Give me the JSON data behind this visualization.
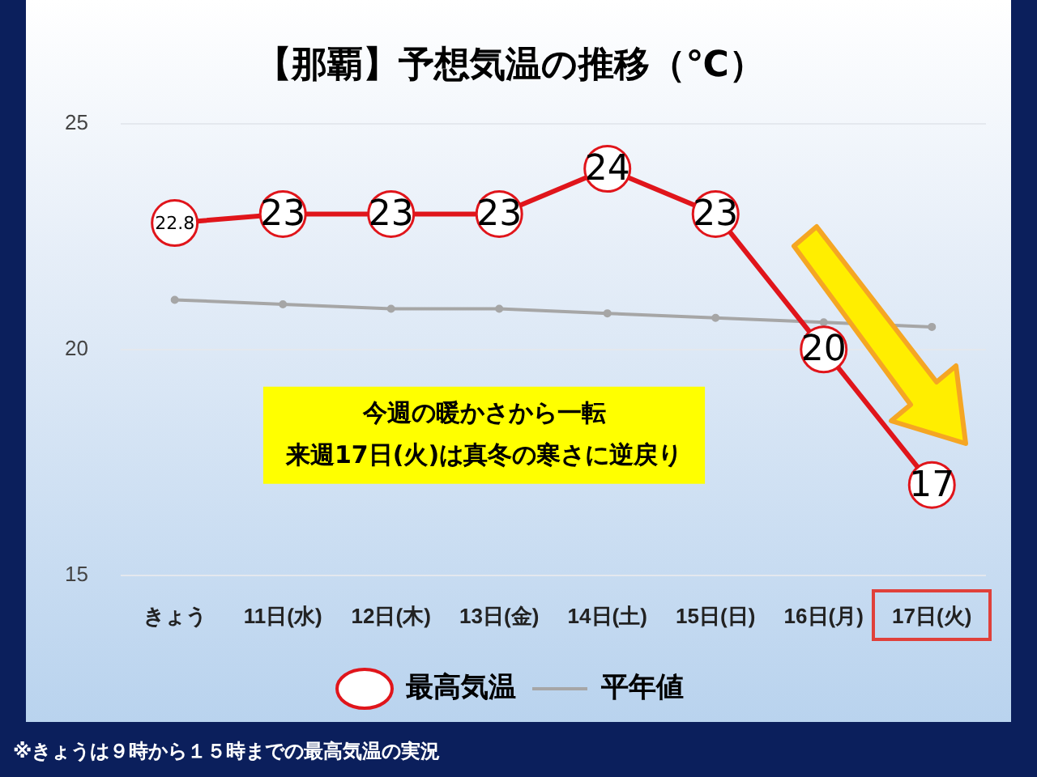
{
  "chart_data": {
    "type": "line",
    "title": "【那覇】予想気温の推移（℃）",
    "categories": [
      "きょう",
      "11日(水)",
      "12日(木)",
      "13日(金)",
      "14日(土)",
      "15日(日)",
      "16日(月)",
      "17日(火)"
    ],
    "series": [
      {
        "name": "最高気温",
        "color": "#e0151b",
        "values": [
          22.8,
          23,
          23,
          23,
          24,
          23,
          20,
          17
        ]
      },
      {
        "name": "平年値",
        "color": "#a6a6a6",
        "values": [
          21.1,
          21.0,
          20.9,
          20.9,
          20.8,
          20.7,
          20.6,
          20.5
        ],
        "data_labels": false
      }
    ],
    "ylim": [
      15,
      25
    ],
    "yticks": [
      15,
      20,
      25
    ],
    "grid": "y",
    "legend": "bottom",
    "marker": "circle",
    "line_style": "solid",
    "data_labels": true,
    "annotations": [
      "今週の暖かさから一転",
      "来週17日(火)は真冬の寒さに逆戻り",
      "※きょうは９時から１５時までの最高気温の実況"
    ]
  }
}
